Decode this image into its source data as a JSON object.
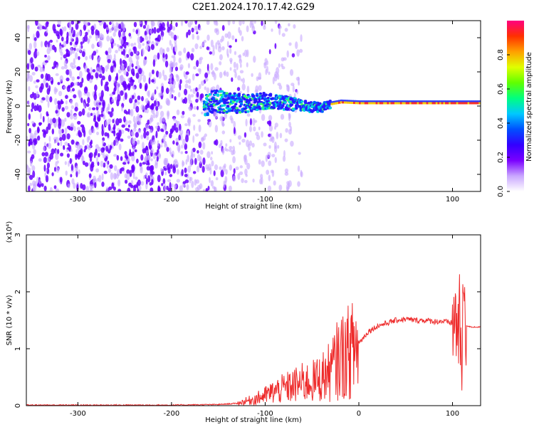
{
  "title": "C2E1.2024.170.17.42.G29",
  "colorbar": {
    "label": "Normalized spectral amplitude",
    "ticks": [
      "0.0",
      "0.2",
      "0.4",
      "0.6",
      "0.8"
    ],
    "colors": [
      "#ffffff",
      "#c9a6ff",
      "#7a00ff",
      "#3300ff",
      "#0050ff",
      "#00c8ff",
      "#00ff80",
      "#60ff00",
      "#e0ff00",
      "#ffa000",
      "#ff3000",
      "#ff0080"
    ]
  },
  "chart_data": [
    {
      "type": "heatmap",
      "name": "spectrogram",
      "xlabel": "Height of straight line (km)",
      "ylabel": "Frequency (Hz)",
      "xlim": [
        -355,
        130
      ],
      "ylim": [
        -50,
        50
      ],
      "xticks": [
        -300,
        -200,
        -100,
        0,
        100
      ],
      "yticks": [
        -40,
        -20,
        0,
        20,
        40
      ],
      "xtick_labels": [
        "-300",
        "-200",
        "-100",
        "0",
        "100"
      ],
      "ytick_labels": [
        "-40",
        "-20",
        "0",
        "20",
        "40"
      ],
      "ridge": {
        "x": [
          -160,
          -140,
          -120,
          -100,
          -80,
          -60,
          -40,
          -30,
          -20,
          0,
          20,
          40,
          60,
          80,
          100,
          120,
          130
        ],
        "y": [
          3,
          2,
          1,
          3,
          2,
          0,
          -1,
          1,
          2,
          1.5,
          1.5,
          1.5,
          1.5,
          1.5,
          1.5,
          1.5,
          1.5
        ]
      },
      "noise_region": {
        "x": [
          -355,
          -120
        ],
        "y": [
          -50,
          50
        ]
      }
    },
    {
      "type": "line",
      "name": "snr",
      "xlabel": "Height of straight line (km)",
      "ylabel": "SNR (10 * v/v)",
      "yscale_label": "(x10⁴)",
      "xlim": [
        -355,
        130
      ],
      "ylim": [
        0,
        3
      ],
      "xticks": [
        -300,
        -200,
        -100,
        0,
        100
      ],
      "yticks": [
        0,
        1,
        2,
        3
      ],
      "xtick_labels": [
        "-300",
        "-200",
        "-100",
        "0",
        "100"
      ],
      "ytick_labels": [
        "0",
        "1",
        "2",
        "3"
      ],
      "color": "#ee2b2b",
      "x": [
        -355,
        -300,
        -250,
        -200,
        -150,
        -130,
        -120,
        -110,
        -100,
        -90,
        -80,
        -70,
        -60,
        -50,
        -45,
        -40,
        -35,
        -30,
        -25,
        -20,
        -15,
        -10,
        -5,
        0,
        10,
        20,
        30,
        40,
        50,
        60,
        70,
        80,
        90,
        100,
        105,
        108,
        110,
        112,
        115,
        120,
        130
      ],
      "y": [
        0.01,
        0.01,
        0.01,
        0.01,
        0.02,
        0.04,
        0.08,
        0.12,
        0.18,
        0.25,
        0.3,
        0.35,
        0.4,
        0.42,
        0.45,
        0.5,
        0.55,
        0.6,
        0.75,
        0.85,
        0.9,
        0.95,
        1.0,
        1.1,
        1.3,
        1.4,
        1.45,
        1.5,
        1.52,
        1.5,
        1.5,
        1.48,
        1.48,
        1.45,
        1.45,
        1.4,
        0.4,
        2.2,
        1.4,
        1.38,
        1.38
      ]
    }
  ]
}
